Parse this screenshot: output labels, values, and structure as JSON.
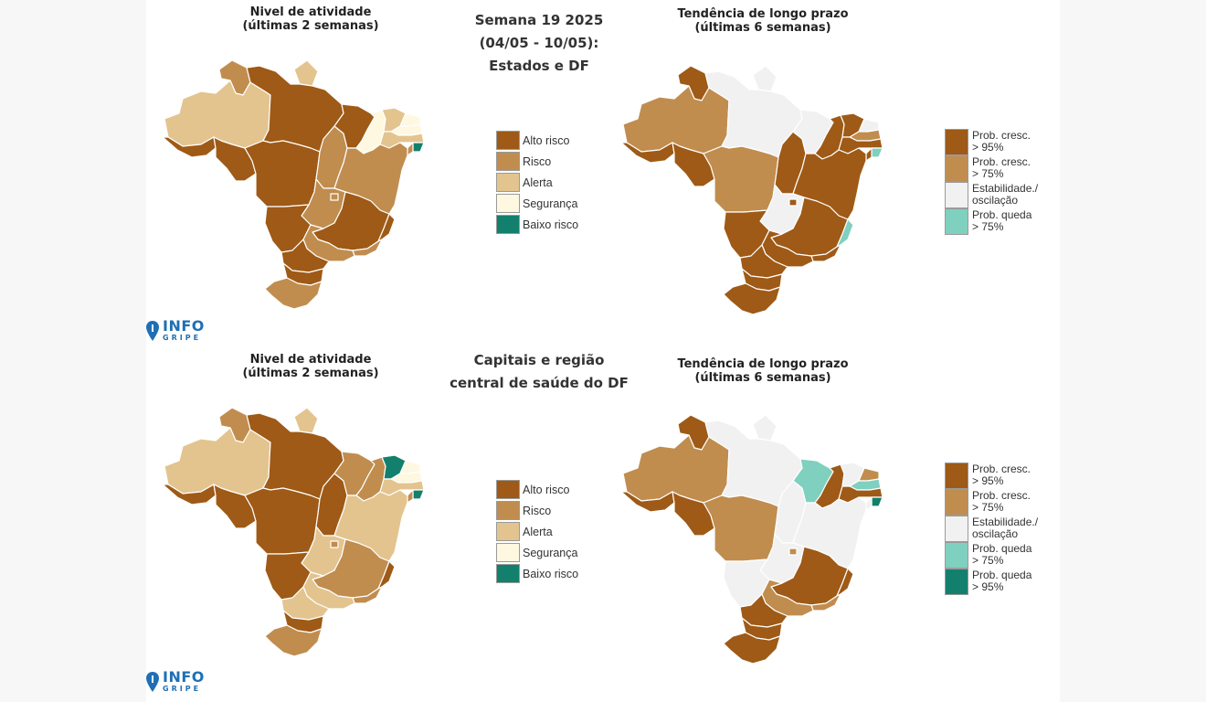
{
  "colors": {
    "alto": "#9e5a16",
    "risco": "#c08d4f",
    "alerta": "#e3c48f",
    "seguranca": "#fdf8df",
    "baixo": "#12806c",
    "cresc95": "#9e5a16",
    "cresc75": "#c08d4f",
    "estab": "#f1f1f1",
    "queda75": "#7fd0bf",
    "queda95": "#12806c",
    "border": "#ffffff",
    "logo": "#1f6fb5"
  },
  "top": {
    "left_title": [
      "Nivel de atividade",
      "(últimas 2 semanas)"
    ],
    "center_title": [
      "Semana 19 2025",
      "(04/05 - 10/05):",
      "Estados e DF"
    ],
    "right_title": [
      "Tendência de longo prazo",
      "(últimas 6 semanas)"
    ],
    "activity_legend": [
      {
        "label": "Alto risco",
        "color": "#9e5a16"
      },
      {
        "label": "Risco",
        "color": "#c08d4f"
      },
      {
        "label": "Alerta",
        "color": "#e3c48f"
      },
      {
        "label": "Segurança",
        "color": "#fdf8df"
      },
      {
        "label": "Baixo risco",
        "color": "#12806c"
      }
    ],
    "trend_legend": [
      {
        "lines": [
          "Prob. cresc.",
          "> 95%"
        ],
        "color": "#9e5a16"
      },
      {
        "lines": [
          "Prob. cresc.",
          "> 75%"
        ],
        "color": "#c08d4f"
      },
      {
        "lines": [
          "Estabilidade./",
          "oscilação"
        ],
        "color": "#f1f1f1"
      },
      {
        "lines": [
          "Prob. queda",
          "> 75%"
        ],
        "color": "#7fd0bf"
      }
    ],
    "activity_map": {
      "RR": "risco",
      "AP": "alerta",
      "AM": "alerta",
      "PA": "alto",
      "AC": "alto",
      "RO": "alto",
      "MT": "alto",
      "TO": "risco",
      "MA": "alto",
      "PI": "seguranca",
      "CE": "alerta",
      "RN": "seguranca",
      "PB": "seguranca",
      "PE": "alerta",
      "AL": "baixo",
      "SE": "risco",
      "BA": "risco",
      "GO": "risco",
      "DF": "risco",
      "MS": "alto",
      "MG": "alto",
      "ES": "alto",
      "RJ": "risco",
      "SP": "risco",
      "PR": "alto",
      "SC": "alto",
      "RS": "risco"
    },
    "trend_map": {
      "RR": "cresc95",
      "AP": "estab",
      "AM": "cresc75",
      "PA": "estab",
      "AC": "cresc95",
      "RO": "cresc95",
      "MT": "cresc75",
      "TO": "cresc95",
      "MA": "estab",
      "PI": "cresc95",
      "CE": "cresc95",
      "RN": "estab",
      "PB": "cresc75",
      "PE": "cresc95",
      "AL": "queda75",
      "SE": "cresc95",
      "BA": "cresc95",
      "GO": "estab",
      "DF": "cresc95",
      "MS": "cresc95",
      "MG": "cresc95",
      "ES": "queda75",
      "RJ": "cresc95",
      "SP": "cresc95",
      "PR": "cresc95",
      "SC": "cresc95",
      "RS": "cresc95"
    }
  },
  "bottom": {
    "left_title": [
      "Nivel de atividade",
      "(últimas 2 semanas)"
    ],
    "center_title": [
      "Capitais e região",
      "central de saúde do DF"
    ],
    "right_title": [
      "Tendência de longo prazo",
      "(últimas 6 semanas)"
    ],
    "activity_legend": [
      {
        "label": "Alto risco",
        "color": "#9e5a16"
      },
      {
        "label": "Risco",
        "color": "#c08d4f"
      },
      {
        "label": "Alerta",
        "color": "#e3c48f"
      },
      {
        "label": "Segurança",
        "color": "#fdf8df"
      },
      {
        "label": "Baixo risco",
        "color": "#12806c"
      }
    ],
    "trend_legend": [
      {
        "lines": [
          "Prob. cresc.",
          "> 95%"
        ],
        "color": "#9e5a16"
      },
      {
        "lines": [
          "Prob. cresc.",
          "> 75%"
        ],
        "color": "#c08d4f"
      },
      {
        "lines": [
          "Estabilidade./",
          "oscilação"
        ],
        "color": "#f1f1f1"
      },
      {
        "lines": [
          "Prob. queda",
          "> 75%"
        ],
        "color": "#7fd0bf"
      },
      {
        "lines": [
          "Prob. queda",
          "> 95%"
        ],
        "color": "#12806c"
      }
    ],
    "activity_map": {
      "RR": "risco",
      "AP": "alerta",
      "AM": "alerta",
      "PA": "alto",
      "AC": "alto",
      "RO": "alto",
      "MT": "alto",
      "TO": "alto",
      "MA": "risco",
      "PI": "risco",
      "CE": "baixo",
      "RN": "seguranca",
      "PB": "seguranca",
      "PE": "alerta",
      "AL": "baixo",
      "SE": "risco",
      "BA": "alerta",
      "GO": "alerta",
      "DF": "risco",
      "MS": "alto",
      "MG": "risco",
      "ES": "alto",
      "RJ": "risco",
      "SP": "alerta",
      "PR": "alerta",
      "SC": "alto",
      "RS": "risco"
    },
    "trend_map": {
      "RR": "cresc95",
      "AP": "estab",
      "AM": "cresc75",
      "PA": "estab",
      "AC": "cresc95",
      "RO": "cresc95",
      "MT": "cresc75",
      "TO": "estab",
      "MA": "queda75",
      "PI": "cresc95",
      "CE": "estab",
      "RN": "cresc75",
      "PB": "queda75",
      "PE": "cresc95",
      "AL": "queda95",
      "SE": "estab",
      "BA": "estab",
      "GO": "estab",
      "DF": "cresc75",
      "MS": "estab",
      "MG": "cresc95",
      "ES": "cresc95",
      "RJ": "cresc75",
      "SP": "cresc75",
      "PR": "cresc95",
      "SC": "cresc95",
      "RS": "cresc95"
    }
  },
  "logo": {
    "line1": "INFO",
    "line2": "GRIPE"
  }
}
